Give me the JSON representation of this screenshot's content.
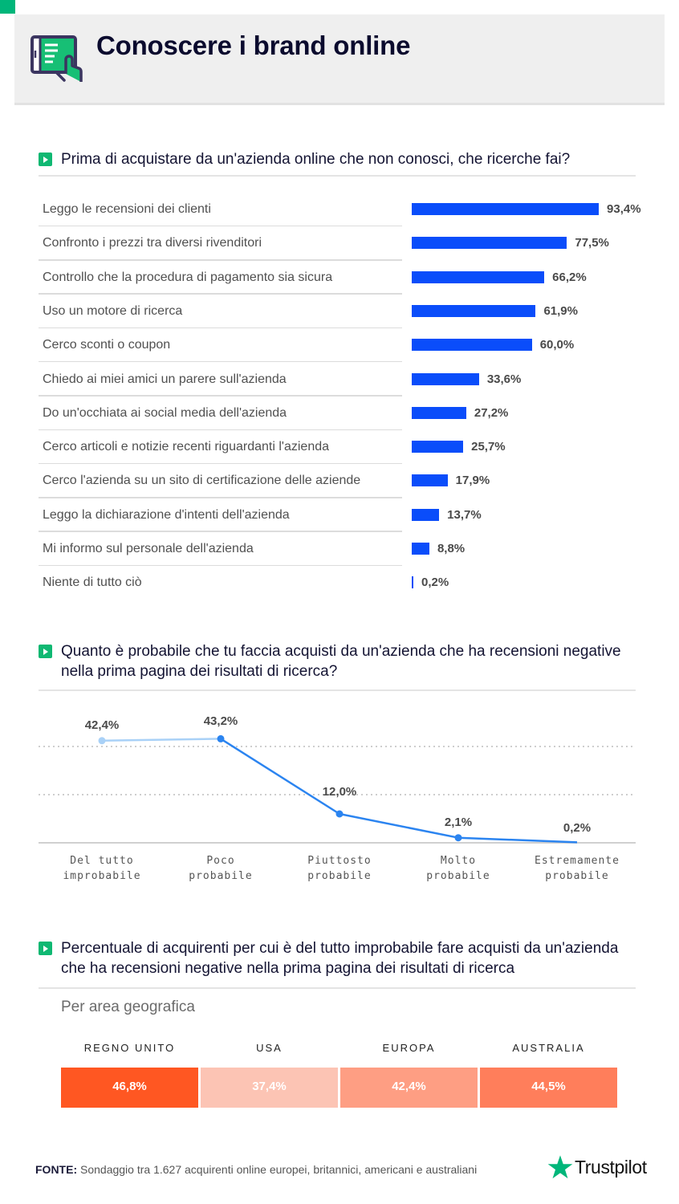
{
  "header": {
    "title": "Conoscere i brand online",
    "icon": "tablet-touch-icon"
  },
  "colors": {
    "brand_green": "#00b67a",
    "bar_blue": "#0a4dfa",
    "line_blue": "#2b84f0",
    "line_light_blue": "#a9d1f7",
    "geo_colors": [
      "#ff5722",
      "#fcc4b4",
      "#fe9e83",
      "#ff7e5b"
    ]
  },
  "sections": {
    "q1": {
      "title": "Prima di acquistare da un'azienda online che non conosci, che ricerche fai?"
    },
    "q2": {
      "title": "Quanto è probabile che tu faccia acquisti da un'azienda che ha recensioni negative nella prima pagina dei risultati di ricerca?"
    },
    "q3": {
      "title": "Percentuale di acquirenti per cui è del tutto improbabile fare acquisti da un'azienda che ha recensioni negative nella prima pagina dei risultati di ricerca",
      "subtitle": "Per area geografica"
    }
  },
  "chart_data": [
    {
      "type": "bar",
      "orientation": "horizontal",
      "title": "Prima di acquistare da un'azienda online che non conosci, che ricerche fai?",
      "categories": [
        "Leggo le recensioni dei clienti",
        "Confronto i prezzi tra diversi rivenditori",
        "Controllo che la procedura di pagamento sia sicura",
        "Uso un motore di ricerca",
        "Cerco sconti o coupon",
        "Chiedo ai miei amici un parere sull'azienda",
        "Do un'occhiata ai social media dell'azienda",
        "Cerco articoli e notizie recenti riguardanti l'azienda",
        "Cerco l'azienda su un sito di certificazione delle aziende",
        "Leggo la dichiarazione d'intenti dell'azienda",
        "Mi informo sul personale dell'azienda",
        "Niente di tutto ciò"
      ],
      "values": [
        93.4,
        77.5,
        66.2,
        61.9,
        60.0,
        33.6,
        27.2,
        25.7,
        17.9,
        13.7,
        8.8,
        0.2
      ],
      "labels": [
        "93,4%",
        "77,5%",
        "66,2%",
        "61,9%",
        "60,0%",
        "33,6%",
        "27,2%",
        "25,7%",
        "17,9%",
        "13,7%",
        "8,8%",
        "0,2%"
      ],
      "unit": "%",
      "xlim": [
        0,
        100
      ]
    },
    {
      "type": "line",
      "title": "Quanto è probabile che tu faccia acquisti da un'azienda che ha recensioni negative nella prima pagina dei risultati di ricerca?",
      "categories": [
        "Del tutto\nimprobabile",
        "Poco\nprobabile",
        "Piuttosto\nprobabile",
        "Molto\nprobabile",
        "Estremamente\nprobabile"
      ],
      "values": [
        42.4,
        43.2,
        12.0,
        2.1,
        0.2
      ],
      "labels": [
        "42,4%",
        "43,2%",
        "12,0%",
        "2,1%",
        "0,2%"
      ],
      "unit": "%",
      "ylim": [
        0,
        50
      ],
      "grid": "dotted horizontal"
    },
    {
      "type": "table",
      "title": "Percentuale di acquirenti per cui è del tutto improbabile fare acquisti da un'azienda che ha recensioni negative nella prima pagina dei risultati di ricerca",
      "subtitle": "Per area geografica",
      "categories": [
        "REGNO UNITO",
        "USA",
        "EUROPA",
        "AUSTRALIA"
      ],
      "values": [
        46.8,
        37.4,
        42.4,
        44.5
      ],
      "labels": [
        "46,8%",
        "37,4%",
        "42,4%",
        "44,5%"
      ],
      "unit": "%"
    }
  ],
  "footer": {
    "source_label": "FONTE:",
    "source_text": "Sondaggio tra 1.627 acquirenti online europei, britannici, americani e australiani",
    "logo_text": "Trustpilot",
    "logo_icon": "star-icon"
  }
}
